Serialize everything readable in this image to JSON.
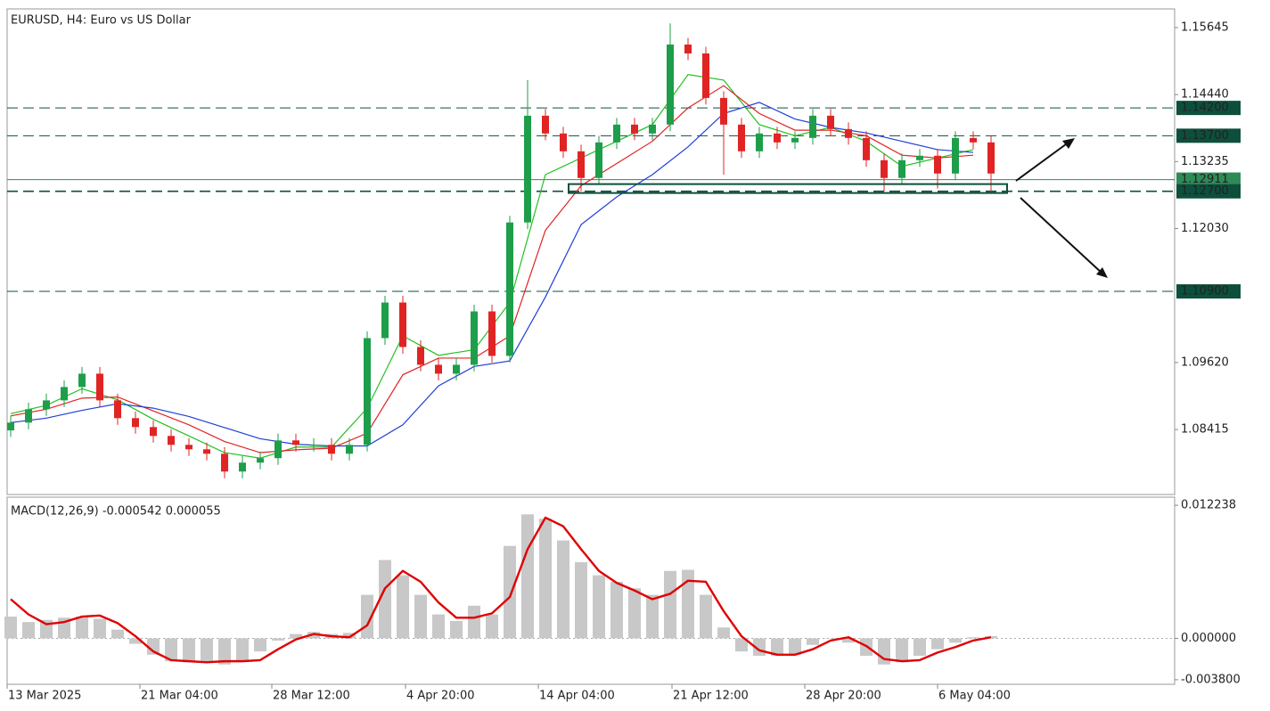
{
  "chart_data": [
    {
      "type": "candlestick",
      "title": "EURUSD, H4:  Euro vs US Dollar",
      "up_color": "#1e9e4a",
      "down_color": "#e02424",
      "open": [
        1.084,
        1.0854,
        1.0878,
        1.0894,
        1.0918,
        1.0942,
        1.0894,
        1.0862,
        1.0846,
        1.083,
        1.0814,
        1.0806,
        1.0798,
        1.0766,
        1.0782,
        1.079,
        1.0822,
        1.0814,
        1.0814,
        1.0798,
        1.0814,
        1.1006,
        1.107,
        1.099,
        1.0958,
        1.0942,
        1.0958,
        1.1054,
        1.0974,
        1.1214,
        1.1406,
        1.1374,
        1.1342,
        1.1294,
        1.1358,
        1.139,
        1.1374,
        1.139,
        1.1534,
        1.1518,
        1.1438,
        1.139,
        1.1342,
        1.1374,
        1.1358,
        1.1366,
        1.1406,
        1.1382,
        1.1366,
        1.1326,
        1.1294,
        1.1326,
        1.1334,
        1.1302,
        1.1366,
        1.1358
      ],
      "high": [
        1.0866,
        1.089,
        1.0906,
        1.093,
        1.0954,
        1.0954,
        1.0906,
        1.0874,
        1.0858,
        1.0842,
        1.0826,
        1.0818,
        1.081,
        1.0794,
        1.0802,
        1.0834,
        1.0834,
        1.0826,
        1.0826,
        1.0826,
        1.1018,
        1.1082,
        1.1082,
        1.1002,
        1.097,
        1.097,
        1.1066,
        1.1066,
        1.1226,
        1.147,
        1.1418,
        1.1386,
        1.1354,
        1.137,
        1.1402,
        1.1402,
        1.1402,
        1.1572,
        1.1546,
        1.153,
        1.145,
        1.1402,
        1.1386,
        1.1386,
        1.1378,
        1.1418,
        1.1418,
        1.1394,
        1.1378,
        1.1338,
        1.1338,
        1.1346,
        1.1346,
        1.1378,
        1.1378,
        1.137
      ],
      "low": [
        1.0828,
        1.0842,
        1.0866,
        1.0882,
        1.0906,
        1.0882,
        1.085,
        1.0834,
        1.0818,
        1.0802,
        1.0794,
        1.0786,
        1.0754,
        1.0754,
        1.077,
        1.0778,
        1.0802,
        1.0802,
        1.0786,
        1.0786,
        1.0802,
        1.0994,
        1.0978,
        1.0946,
        1.093,
        1.093,
        1.0946,
        1.0962,
        1.0962,
        1.1202,
        1.1362,
        1.133,
        1.127,
        1.1282,
        1.1346,
        1.1362,
        1.1362,
        1.1378,
        1.1506,
        1.1426,
        1.13,
        1.133,
        1.133,
        1.1346,
        1.1346,
        1.1354,
        1.137,
        1.1354,
        1.1314,
        1.127,
        1.1282,
        1.1314,
        1.1275,
        1.129,
        1.1346,
        1.127
      ],
      "close": [
        1.0854,
        1.0878,
        1.0894,
        1.0918,
        1.0942,
        1.0894,
        1.0862,
        1.0846,
        1.083,
        1.0814,
        1.0806,
        1.0798,
        1.0766,
        1.0782,
        1.079,
        1.0822,
        1.0814,
        1.0814,
        1.0798,
        1.0814,
        1.1006,
        1.107,
        1.099,
        1.0958,
        1.0942,
        1.0958,
        1.1054,
        1.0974,
        1.1214,
        1.1406,
        1.1374,
        1.1342,
        1.1294,
        1.1358,
        1.139,
        1.1374,
        1.139,
        1.1534,
        1.1518,
        1.1438,
        1.139,
        1.1342,
        1.1374,
        1.1358,
        1.1366,
        1.1406,
        1.1382,
        1.1366,
        1.1326,
        1.1294,
        1.1326,
        1.1334,
        1.1302,
        1.1366,
        1.1358,
        1.1302
      ],
      "series": [
        {
          "color": "#22c022",
          "x": [
            0,
            2,
            4,
            6,
            8,
            10,
            12,
            14,
            16,
            18,
            20,
            22,
            24,
            26,
            28,
            30,
            32,
            34,
            36,
            38,
            40,
            42,
            44,
            46,
            48,
            50,
            52,
            54
          ],
          "values": [
            1.087,
            1.0885,
            1.0915,
            1.0895,
            1.086,
            1.083,
            1.08,
            1.079,
            1.081,
            1.081,
            1.088,
            1.101,
            1.0975,
            1.0985,
            1.107,
            1.13,
            1.133,
            1.136,
            1.139,
            1.148,
            1.147,
            1.139,
            1.137,
            1.1385,
            1.136,
            1.1315,
            1.133,
            1.1345
          ]
        },
        {
          "color": "#e02424",
          "x": [
            0,
            2,
            4,
            6,
            8,
            10,
            12,
            14,
            16,
            18,
            20,
            22,
            24,
            26,
            28,
            30,
            32,
            34,
            36,
            38,
            40,
            42,
            44,
            46,
            48,
            50,
            52,
            54
          ],
          "values": [
            1.0866,
            1.0878,
            1.0898,
            1.09,
            1.0875,
            1.085,
            1.082,
            1.08,
            1.0805,
            1.0808,
            1.0835,
            1.094,
            1.097,
            1.097,
            1.101,
            1.12,
            1.128,
            1.132,
            1.136,
            1.142,
            1.146,
            1.141,
            1.138,
            1.138,
            1.137,
            1.1335,
            1.133,
            1.1335
          ]
        },
        {
          "color": "#1f3fd6",
          "x": [
            0,
            2,
            4,
            6,
            8,
            10,
            12,
            14,
            16,
            18,
            20,
            22,
            24,
            26,
            28,
            30,
            32,
            34,
            36,
            38,
            40,
            42,
            44,
            46,
            48,
            50,
            52,
            54
          ],
          "values": [
            1.0854,
            1.0862,
            1.0876,
            1.0888,
            1.088,
            1.0865,
            1.0845,
            1.0825,
            1.0815,
            1.0812,
            1.0812,
            1.085,
            1.092,
            1.0955,
            1.0965,
            1.108,
            1.121,
            1.126,
            1.13,
            1.135,
            1.141,
            1.143,
            1.14,
            1.1385,
            1.1375,
            1.136,
            1.1345,
            1.134
          ]
        }
      ],
      "xlim": [
        -0.2,
        65.3
      ],
      "xticks": [
        {
          "value": -0.2,
          "label": "13 Mar 2025"
        },
        {
          "value": 7.25,
          "label": "21 Mar 04:00"
        },
        {
          "value": 14.65,
          "label": "28 Mar 12:00"
        },
        {
          "value": 22.15,
          "label": "4 Apr 20:00"
        },
        {
          "value": 29.6,
          "label": "14 Apr 04:00"
        },
        {
          "value": 37.1,
          "label": "21 Apr 12:00"
        },
        {
          "value": 44.55,
          "label": "28 Apr 20:00"
        },
        {
          "value": 52.0,
          "label": "6 May 04:00"
        }
      ],
      "ylim": [
        1.07247,
        1.15981
      ],
      "yticks": [
        1.15645,
        {
          "value": 1.1444,
          "label": "1.14440"
        },
        1.13235,
        {
          "value": 1.1203,
          "label": "1.12030"
        },
        {
          "value": 1.0962,
          "label": "1.09620"
        },
        1.08415
      ],
      "levels": [
        {
          "value": 1.142,
          "label": "1.14200"
        },
        {
          "value": 1.137,
          "label": "1.13700"
        },
        {
          "value": 1.109,
          "label": "1.10900"
        },
        {
          "value": 1.127,
          "label": "1.12700"
        }
      ],
      "level_color": "#0d4f3c",
      "price_line": 1.12911,
      "price_line_color": "#2e8b57",
      "zone": {
        "x": [
          31.3,
          55.9
        ],
        "y": [
          1.1267,
          1.1283
        ]
      }
    },
    {
      "type": "macd",
      "title": "MACD(12,26,9) -0.000542 0.000055",
      "histogram": [
        0.002,
        0.0015,
        0.0017,
        0.0019,
        0.002,
        0.0018,
        0.0008,
        -0.0005,
        -0.0015,
        -0.0021,
        -0.0022,
        -0.0022,
        -0.0024,
        -0.0021,
        -0.0012,
        -0.0002,
        0.0004,
        0.0006,
        0.0004,
        0.0005,
        0.004,
        0.0072,
        0.0058,
        0.004,
        0.0022,
        0.0016,
        0.003,
        0.0022,
        0.0085,
        0.0114,
        0.011,
        0.009,
        0.007,
        0.0058,
        0.0052,
        0.0046,
        0.004,
        0.0062,
        0.0063,
        0.004,
        0.001,
        -0.0012,
        -0.0016,
        -0.0016,
        -0.0015,
        -0.0006,
        0.0,
        -0.0004,
        -0.0016,
        -0.0024,
        -0.0022,
        -0.0016,
        -0.001,
        -0.0004,
        0.0001,
        0.0002
      ],
      "histogram_color": "#c8c8c8",
      "signal": [
        0.0036,
        0.0022,
        0.0013,
        0.0015,
        0.002,
        0.0021,
        0.0014,
        0.0002,
        -0.0012,
        -0.002,
        -0.0021,
        -0.0022,
        -0.0021,
        -0.0021,
        -0.002,
        -0.001,
        -0.0001,
        0.0004,
        0.0002,
        0.0001,
        0.0012,
        0.0046,
        0.0062,
        0.0052,
        0.0033,
        0.0019,
        0.0019,
        0.0023,
        0.0038,
        0.0082,
        0.0111,
        0.0103,
        0.0082,
        0.0062,
        0.0051,
        0.0044,
        0.0036,
        0.0041,
        0.0053,
        0.0052,
        0.0025,
        0.0002,
        -0.0011,
        -0.0015,
        -0.0015,
        -0.001,
        -0.0002,
        0.0001,
        -0.0007,
        -0.0019,
        -0.0021,
        -0.002,
        -0.0013,
        -0.0008,
        -0.0002,
        0.0001
      ],
      "signal_color": "#e00000",
      "ylim": [
        -0.00422,
        0.01298
      ],
      "yticks": [
        0.012238,
        {
          "value": 0,
          "label": "0.000000"
        },
        {
          "value": -0.0038,
          "label": "-0.003800"
        }
      ],
      "zero_line": true
    }
  ]
}
